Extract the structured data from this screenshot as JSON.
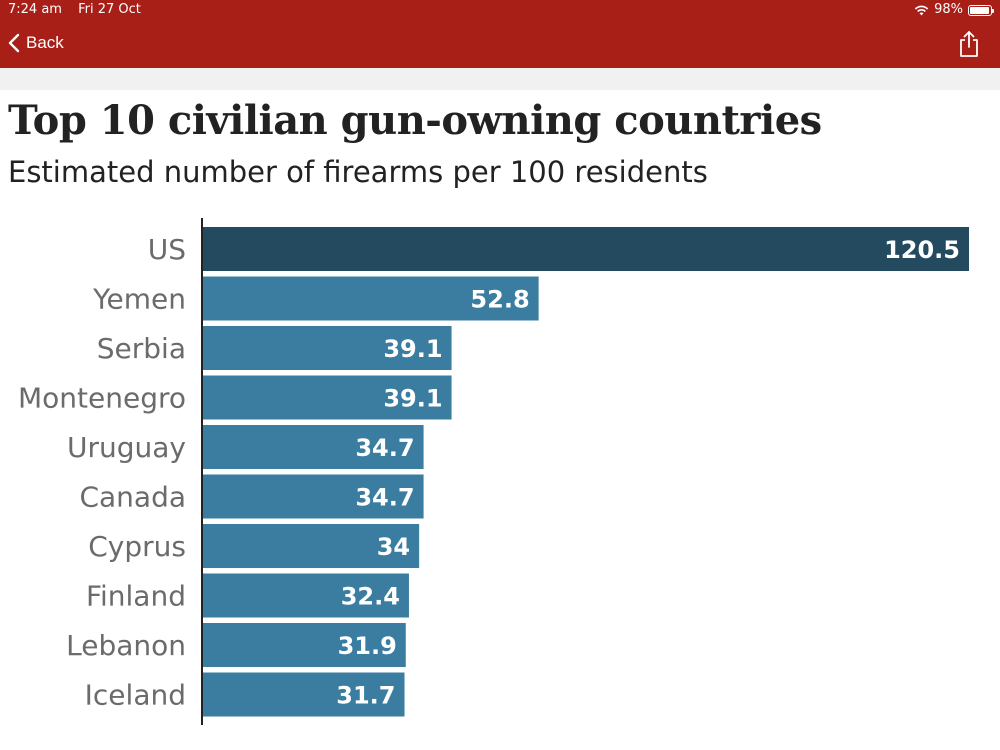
{
  "status_bar": {
    "time": "7:24 am",
    "date": "Fri 27 Oct",
    "battery": "98%"
  },
  "nav": {
    "back_label": "Back",
    "back_icon": "chevron-left-icon",
    "share_icon": "share-icon"
  },
  "colors": {
    "header_bg": "#a81f17",
    "highlight_bar": "#234a5f",
    "bar": "#3b7da0"
  },
  "chart_data": {
    "type": "bar",
    "orientation": "horizontal",
    "title": "Top 10 civilian gun-owning countries",
    "subtitle": "Estimated number of firearms per 100 residents",
    "categories": [
      "US",
      "Yemen",
      "Serbia",
      "Montenegro",
      "Uruguay",
      "Canada",
      "Cyprus",
      "Finland",
      "Lebanon",
      "Iceland"
    ],
    "values": [
      120.5,
      52.8,
      39.1,
      39.1,
      34.7,
      34.7,
      34,
      32.4,
      31.9,
      31.7
    ],
    "value_labels": [
      "120.5",
      "52.8",
      "39.1",
      "39.1",
      "34.7",
      "34.7",
      "34",
      "32.4",
      "31.9",
      "31.7"
    ],
    "highlight_category": "US",
    "grid": false,
    "legend": "none"
  }
}
